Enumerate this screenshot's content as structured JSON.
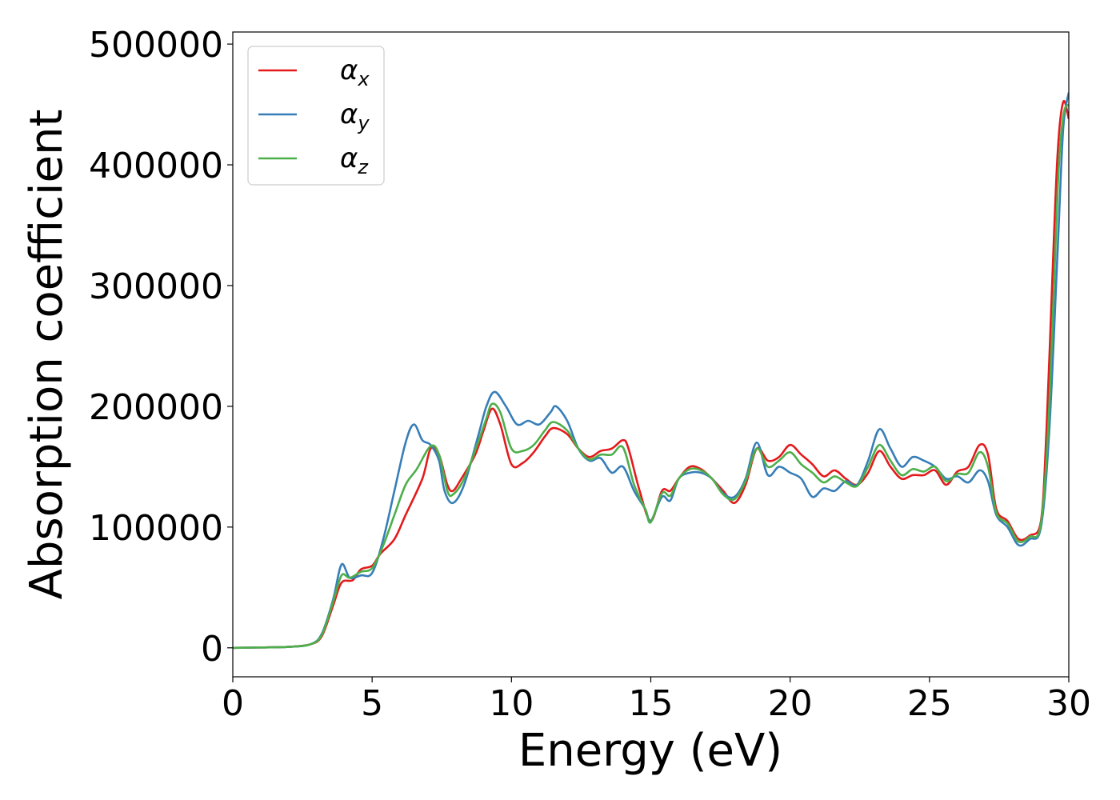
{
  "chart_data": {
    "type": "line",
    "title": "",
    "xlabel": "Energy (eV)",
    "ylabel": "Absorption coefficient",
    "xlim": [
      0,
      30
    ],
    "ylim": [
      -24000,
      510000
    ],
    "xticks": [
      0,
      5,
      10,
      15,
      20,
      25,
      30
    ],
    "xtick_labels": [
      "0",
      "5",
      "10",
      "15",
      "20",
      "25",
      "30"
    ],
    "yticks": [
      0,
      100000,
      200000,
      300000,
      400000,
      500000
    ],
    "ytick_labels": [
      "0",
      "100000",
      "200000",
      "300000",
      "400000",
      "500000"
    ],
    "grid": false,
    "legend_position": "top-left",
    "series": [
      {
        "name": "α_x",
        "legend_main": "α",
        "legend_sub": "x",
        "color": "#e41a1c",
        "points": [
          [
            0,
            0
          ],
          [
            1,
            300
          ],
          [
            2,
            800
          ],
          [
            2.8,
            3000
          ],
          [
            3.2,
            10000
          ],
          [
            3.6,
            35000
          ],
          [
            3.9,
            54000
          ],
          [
            4.3,
            56000
          ],
          [
            4.6,
            65000
          ],
          [
            5.0,
            68000
          ],
          [
            5.3,
            78000
          ],
          [
            5.8,
            90000
          ],
          [
            6.2,
            110000
          ],
          [
            6.8,
            140000
          ],
          [
            7.1,
            165000
          ],
          [
            7.4,
            160000
          ],
          [
            7.7,
            135000
          ],
          [
            7.9,
            130000
          ],
          [
            8.2,
            140000
          ],
          [
            8.7,
            160000
          ],
          [
            9.0,
            180000
          ],
          [
            9.3,
            198000
          ],
          [
            9.6,
            185000
          ],
          [
            10.0,
            152000
          ],
          [
            10.4,
            153000
          ],
          [
            10.8,
            162000
          ],
          [
            11.2,
            175000
          ],
          [
            11.5,
            182000
          ],
          [
            12.0,
            177000
          ],
          [
            12.4,
            165000
          ],
          [
            12.8,
            158000
          ],
          [
            13.2,
            163000
          ],
          [
            13.6,
            165000
          ],
          [
            14.0,
            172000
          ],
          [
            14.2,
            165000
          ],
          [
            14.6,
            130000
          ],
          [
            15.0,
            105000
          ],
          [
            15.4,
            130000
          ],
          [
            15.7,
            130000
          ],
          [
            16.0,
            140000
          ],
          [
            16.4,
            150000
          ],
          [
            16.8,
            148000
          ],
          [
            17.2,
            140000
          ],
          [
            17.6,
            130000
          ],
          [
            18.0,
            120000
          ],
          [
            18.4,
            135000
          ],
          [
            18.8,
            165000
          ],
          [
            19.2,
            155000
          ],
          [
            19.6,
            158000
          ],
          [
            20.0,
            168000
          ],
          [
            20.4,
            160000
          ],
          [
            20.8,
            152000
          ],
          [
            21.2,
            142000
          ],
          [
            21.6,
            147000
          ],
          [
            22.0,
            140000
          ],
          [
            22.4,
            135000
          ],
          [
            22.8,
            145000
          ],
          [
            23.2,
            163000
          ],
          [
            23.6,
            150000
          ],
          [
            24.0,
            140000
          ],
          [
            24.4,
            143000
          ],
          [
            24.8,
            143000
          ],
          [
            25.2,
            147000
          ],
          [
            25.6,
            135000
          ],
          [
            26.0,
            146000
          ],
          [
            26.4,
            150000
          ],
          [
            26.8,
            168000
          ],
          [
            27.1,
            160000
          ],
          [
            27.4,
            115000
          ],
          [
            27.8,
            105000
          ],
          [
            28.2,
            90000
          ],
          [
            28.6,
            93000
          ],
          [
            29.0,
            105000
          ],
          [
            29.2,
            180000
          ],
          [
            29.4,
            300000
          ],
          [
            29.6,
            410000
          ],
          [
            29.8,
            452000
          ],
          [
            30.0,
            438000
          ]
        ]
      },
      {
        "name": "α_y",
        "legend_main": "α",
        "legend_sub": "y",
        "color": "#377eb8",
        "points": [
          [
            0,
            0
          ],
          [
            1,
            300
          ],
          [
            2,
            800
          ],
          [
            2.8,
            3000
          ],
          [
            3.2,
            12000
          ],
          [
            3.6,
            40000
          ],
          [
            3.9,
            69000
          ],
          [
            4.2,
            58000
          ],
          [
            4.6,
            60000
          ],
          [
            5.0,
            62000
          ],
          [
            5.4,
            90000
          ],
          [
            5.8,
            130000
          ],
          [
            6.2,
            170000
          ],
          [
            6.5,
            185000
          ],
          [
            6.8,
            172000
          ],
          [
            7.1,
            168000
          ],
          [
            7.4,
            155000
          ],
          [
            7.6,
            130000
          ],
          [
            7.9,
            120000
          ],
          [
            8.3,
            135000
          ],
          [
            8.8,
            175000
          ],
          [
            9.1,
            200000
          ],
          [
            9.4,
            212000
          ],
          [
            9.8,
            200000
          ],
          [
            10.2,
            185000
          ],
          [
            10.6,
            188000
          ],
          [
            11.0,
            185000
          ],
          [
            11.4,
            195000
          ],
          [
            11.6,
            200000
          ],
          [
            12.0,
            188000
          ],
          [
            12.4,
            165000
          ],
          [
            12.8,
            155000
          ],
          [
            13.2,
            157000
          ],
          [
            13.6,
            145000
          ],
          [
            14.0,
            150000
          ],
          [
            14.4,
            130000
          ],
          [
            14.8,
            115000
          ],
          [
            15.0,
            105000
          ],
          [
            15.4,
            125000
          ],
          [
            15.7,
            122000
          ],
          [
            16.0,
            140000
          ],
          [
            16.4,
            145000
          ],
          [
            16.8,
            145000
          ],
          [
            17.2,
            140000
          ],
          [
            17.6,
            128000
          ],
          [
            18.0,
            125000
          ],
          [
            18.4,
            140000
          ],
          [
            18.8,
            170000
          ],
          [
            19.2,
            143000
          ],
          [
            19.6,
            150000
          ],
          [
            20.0,
            145000
          ],
          [
            20.4,
            140000
          ],
          [
            20.8,
            125000
          ],
          [
            21.2,
            132000
          ],
          [
            21.6,
            130000
          ],
          [
            22.0,
            138000
          ],
          [
            22.4,
            135000
          ],
          [
            22.8,
            155000
          ],
          [
            23.2,
            181000
          ],
          [
            23.6,
            165000
          ],
          [
            24.0,
            150000
          ],
          [
            24.4,
            158000
          ],
          [
            24.8,
            155000
          ],
          [
            25.2,
            150000
          ],
          [
            25.6,
            140000
          ],
          [
            26.0,
            142000
          ],
          [
            26.4,
            137000
          ],
          [
            26.8,
            147000
          ],
          [
            27.1,
            138000
          ],
          [
            27.4,
            110000
          ],
          [
            27.8,
            100000
          ],
          [
            28.2,
            85000
          ],
          [
            28.6,
            90000
          ],
          [
            29.0,
            100000
          ],
          [
            29.3,
            180000
          ],
          [
            29.6,
            330000
          ],
          [
            29.8,
            430000
          ],
          [
            30.0,
            460000
          ]
        ]
      },
      {
        "name": "α_z",
        "legend_main": "α",
        "legend_sub": "z",
        "color": "#4daf4a",
        "points": [
          [
            0,
            0
          ],
          [
            1,
            300
          ],
          [
            2,
            800
          ],
          [
            2.8,
            3000
          ],
          [
            3.2,
            11000
          ],
          [
            3.6,
            38000
          ],
          [
            3.9,
            60000
          ],
          [
            4.2,
            58000
          ],
          [
            4.6,
            63000
          ],
          [
            5.0,
            66000
          ],
          [
            5.4,
            85000
          ],
          [
            5.8,
            110000
          ],
          [
            6.2,
            135000
          ],
          [
            6.6,
            148000
          ],
          [
            7.1,
            167000
          ],
          [
            7.4,
            160000
          ],
          [
            7.7,
            130000
          ],
          [
            7.9,
            127000
          ],
          [
            8.3,
            140000
          ],
          [
            8.8,
            170000
          ],
          [
            9.1,
            190000
          ],
          [
            9.3,
            202000
          ],
          [
            9.6,
            195000
          ],
          [
            10.0,
            165000
          ],
          [
            10.4,
            163000
          ],
          [
            10.8,
            168000
          ],
          [
            11.2,
            180000
          ],
          [
            11.5,
            187000
          ],
          [
            12.0,
            180000
          ],
          [
            12.4,
            165000
          ],
          [
            12.8,
            156000
          ],
          [
            13.2,
            160000
          ],
          [
            13.6,
            160000
          ],
          [
            14.0,
            166000
          ],
          [
            14.4,
            135000
          ],
          [
            14.8,
            115000
          ],
          [
            15.0,
            104000
          ],
          [
            15.4,
            128000
          ],
          [
            15.7,
            126000
          ],
          [
            16.0,
            140000
          ],
          [
            16.4,
            148000
          ],
          [
            16.8,
            147000
          ],
          [
            17.2,
            140000
          ],
          [
            17.6,
            127000
          ],
          [
            18.0,
            123000
          ],
          [
            18.4,
            138000
          ],
          [
            18.8,
            165000
          ],
          [
            19.2,
            150000
          ],
          [
            19.6,
            155000
          ],
          [
            20.0,
            162000
          ],
          [
            20.4,
            152000
          ],
          [
            20.8,
            145000
          ],
          [
            21.2,
            137000
          ],
          [
            21.6,
            142000
          ],
          [
            22.0,
            137000
          ],
          [
            22.4,
            134000
          ],
          [
            22.8,
            150000
          ],
          [
            23.2,
            168000
          ],
          [
            23.6,
            155000
          ],
          [
            24.0,
            143000
          ],
          [
            24.4,
            148000
          ],
          [
            24.8,
            146000
          ],
          [
            25.2,
            150000
          ],
          [
            25.6,
            138000
          ],
          [
            26.0,
            144000
          ],
          [
            26.4,
            145000
          ],
          [
            26.8,
            162000
          ],
          [
            27.1,
            150000
          ],
          [
            27.4,
            112000
          ],
          [
            27.8,
            103000
          ],
          [
            28.2,
            88000
          ],
          [
            28.6,
            92000
          ],
          [
            29.0,
            103000
          ],
          [
            29.3,
            200000
          ],
          [
            29.6,
            380000
          ],
          [
            29.8,
            440000
          ],
          [
            30.0,
            450000
          ]
        ]
      }
    ]
  }
}
